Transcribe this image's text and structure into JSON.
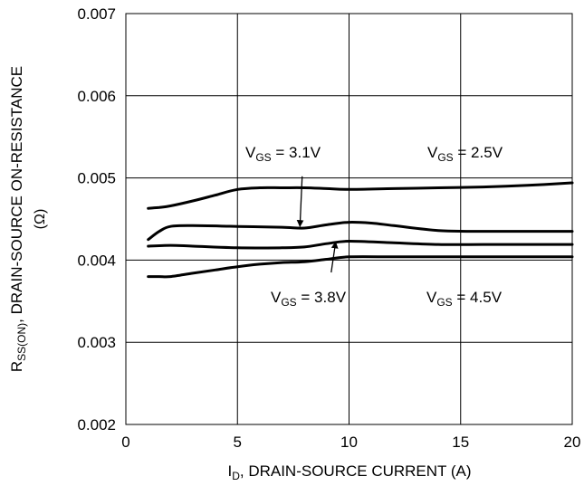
{
  "chart_data": {
    "type": "line",
    "xlabel_parts": [
      "I",
      "D",
      ", DRAIN-SOURCE CURRENT (A)"
    ],
    "ylabel_line1_parts": [
      "R",
      "SS(ON)",
      ", DRAIN-SOURCE ON-RESISTANCE"
    ],
    "ylabel_line2": "(Ω)",
    "xlim": [
      0,
      20
    ],
    "ylim": [
      0.002,
      0.007
    ],
    "x_ticks": [
      0,
      5,
      10,
      15,
      20
    ],
    "x_tick_labels": [
      "0",
      "5",
      "10",
      "15",
      "20"
    ],
    "y_ticks": [
      0.002,
      0.003,
      0.004,
      0.005,
      0.006,
      0.007
    ],
    "y_tick_labels": [
      "0.002",
      "0.003",
      "0.004",
      "0.005",
      "0.006",
      "0.007"
    ],
    "grid": true,
    "series": [
      {
        "name": "V_GS = 2.5V",
        "x": [
          1,
          1.5,
          2,
          3,
          4,
          5,
          6,
          7,
          8,
          9,
          10,
          12,
          14,
          16,
          18,
          20
        ],
        "y": [
          0.00463,
          0.00464,
          0.00466,
          0.00472,
          0.00479,
          0.00486,
          0.00488,
          0.00488,
          0.00488,
          0.00487,
          0.00486,
          0.00487,
          0.00488,
          0.00489,
          0.00491,
          0.00494
        ]
      },
      {
        "name": "V_GS = 3.1V",
        "x": [
          1,
          1.5,
          2,
          3,
          5,
          7,
          8,
          9,
          10,
          11,
          12,
          14,
          16,
          18,
          20
        ],
        "y": [
          0.00425,
          0.00435,
          0.00441,
          0.00442,
          0.00441,
          0.0044,
          0.00439,
          0.00443,
          0.00446,
          0.00445,
          0.00442,
          0.00436,
          0.00435,
          0.00435,
          0.00435
        ]
      },
      {
        "name": "V_GS = 3.8V",
        "x": [
          1,
          2,
          3,
          5,
          7,
          8,
          9,
          10,
          12,
          14,
          16,
          18,
          20
        ],
        "y": [
          0.00417,
          0.00418,
          0.00417,
          0.00415,
          0.00415,
          0.00416,
          0.0042,
          0.00423,
          0.00421,
          0.00419,
          0.00419,
          0.00419,
          0.00419
        ]
      },
      {
        "name": "V_GS = 4.5V",
        "x": [
          1,
          1.5,
          2,
          3,
          4,
          5,
          6,
          7,
          8,
          9,
          10,
          12,
          14,
          16,
          18,
          20
        ],
        "y": [
          0.0038,
          0.0038,
          0.0038,
          0.00384,
          0.00388,
          0.00392,
          0.00395,
          0.00397,
          0.00398,
          0.00401,
          0.00404,
          0.00404,
          0.00404,
          0.00404,
          0.00404,
          0.00404
        ]
      }
    ],
    "annotations": [
      {
        "label_parts": [
          "V",
          "GS",
          " = 3.1V"
        ],
        "arrow_from": [
          7.9,
          0.00502
        ],
        "arrow_to": [
          7.8,
          0.00441
        ]
      },
      {
        "label_parts": [
          "V",
          "GS",
          " = 2.5V"
        ]
      },
      {
        "label_parts": [
          "V",
          "GS",
          " = 3.8V"
        ],
        "arrow_from": [
          9.2,
          0.00385
        ],
        "arrow_to": [
          9.4,
          0.00422
        ]
      },
      {
        "label_parts": [
          "V",
          "GS",
          " = 4.5V"
        ]
      }
    ]
  }
}
